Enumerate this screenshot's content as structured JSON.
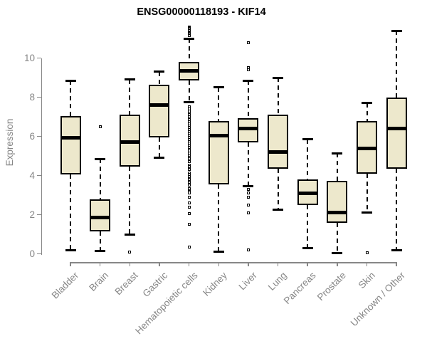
{
  "chart_data": {
    "type": "boxplot",
    "title": "ENSG00000118193 - KIF14",
    "xlabel": "",
    "ylabel": "Expression",
    "ylim": [
      0,
      11.7
    ],
    "yticks": [
      0,
      2,
      4,
      6,
      8,
      10
    ],
    "grid": false,
    "legend": "none",
    "colors": {
      "box_fill": "#EDE8CC",
      "box_stroke": "#000000",
      "axis": "#878787",
      "tick_label": "#878787",
      "title": "#000000"
    },
    "categories": [
      "Bladder",
      "Brain",
      "Breast",
      "Gastric",
      "Hematopoietic cells",
      "Kidney",
      "Liver",
      "Lung",
      "Pancreas",
      "Prostate",
      "Skin",
      "Unknown / Other"
    ],
    "series": [
      {
        "name": "Bladder",
        "whisker_low": 0.2,
        "q1": 4.05,
        "median": 5.95,
        "q3": 7.05,
        "whisker_high": 8.85,
        "outliers": []
      },
      {
        "name": "Brain",
        "whisker_low": 0.15,
        "q1": 1.15,
        "median": 1.85,
        "q3": 2.8,
        "whisker_high": 4.85,
        "outliers": [
          6.5
        ]
      },
      {
        "name": "Breast",
        "whisker_low": 1.0,
        "q1": 4.45,
        "median": 5.7,
        "q3": 7.1,
        "whisker_high": 8.9,
        "outliers": [
          0.1
        ]
      },
      {
        "name": "Gastric",
        "whisker_low": 4.9,
        "q1": 5.95,
        "median": 7.6,
        "q3": 8.65,
        "whisker_high": 9.3,
        "outliers": []
      },
      {
        "name": "Hematopoietic cells",
        "whisker_low": 7.75,
        "q1": 8.85,
        "median": 9.35,
        "q3": 9.8,
        "whisker_high": 11.0,
        "outliers": [
          11.6,
          11.55,
          11.5,
          11.45,
          11.4,
          11.35,
          11.3,
          11.25,
          11.2,
          11.15,
          7.5,
          7.4,
          7.3,
          7.2,
          7.1,
          7.0,
          6.9,
          6.85,
          6.75,
          6.65,
          6.55,
          6.45,
          6.35,
          6.25,
          6.15,
          6.05,
          5.95,
          5.85,
          5.75,
          5.65,
          5.55,
          5.45,
          5.35,
          5.25,
          5.15,
          5.05,
          4.95,
          4.85,
          4.7,
          4.55,
          4.45,
          4.3,
          4.15,
          4.05,
          3.95,
          3.8,
          3.65,
          3.5,
          3.35,
          3.2,
          3.1,
          2.9,
          2.6,
          2.4,
          2.05,
          1.5,
          0.35
        ]
      },
      {
        "name": "Kidney",
        "whisker_low": 0.1,
        "q1": 3.55,
        "median": 6.05,
        "q3": 6.8,
        "whisker_high": 8.5,
        "outliers": []
      },
      {
        "name": "Liver",
        "whisker_low": 3.45,
        "q1": 5.7,
        "median": 6.4,
        "q3": 6.95,
        "whisker_high": 8.85,
        "outliers": [
          10.8,
          9.5,
          9.4,
          3.3,
          3.1,
          2.9,
          2.5,
          2.1,
          0.2
        ]
      },
      {
        "name": "Lung",
        "whisker_low": 2.25,
        "q1": 4.35,
        "median": 5.2,
        "q3": 7.1,
        "whisker_high": 9.0,
        "outliers": []
      },
      {
        "name": "Pancreas",
        "whisker_low": 0.3,
        "q1": 2.5,
        "median": 3.1,
        "q3": 3.8,
        "whisker_high": 5.85,
        "outliers": []
      },
      {
        "name": "Prostate",
        "whisker_low": 0.05,
        "q1": 1.6,
        "median": 2.1,
        "q3": 3.75,
        "whisker_high": 5.15,
        "outliers": []
      },
      {
        "name": "Skin",
        "whisker_low": 2.1,
        "q1": 4.1,
        "median": 5.4,
        "q3": 6.8,
        "whisker_high": 7.7,
        "outliers": [
          0.05
        ]
      },
      {
        "name": "Unknown / Other",
        "whisker_low": 0.2,
        "q1": 4.35,
        "median": 6.4,
        "q3": 8.0,
        "whisker_high": 11.4,
        "outliers": []
      }
    ]
  }
}
